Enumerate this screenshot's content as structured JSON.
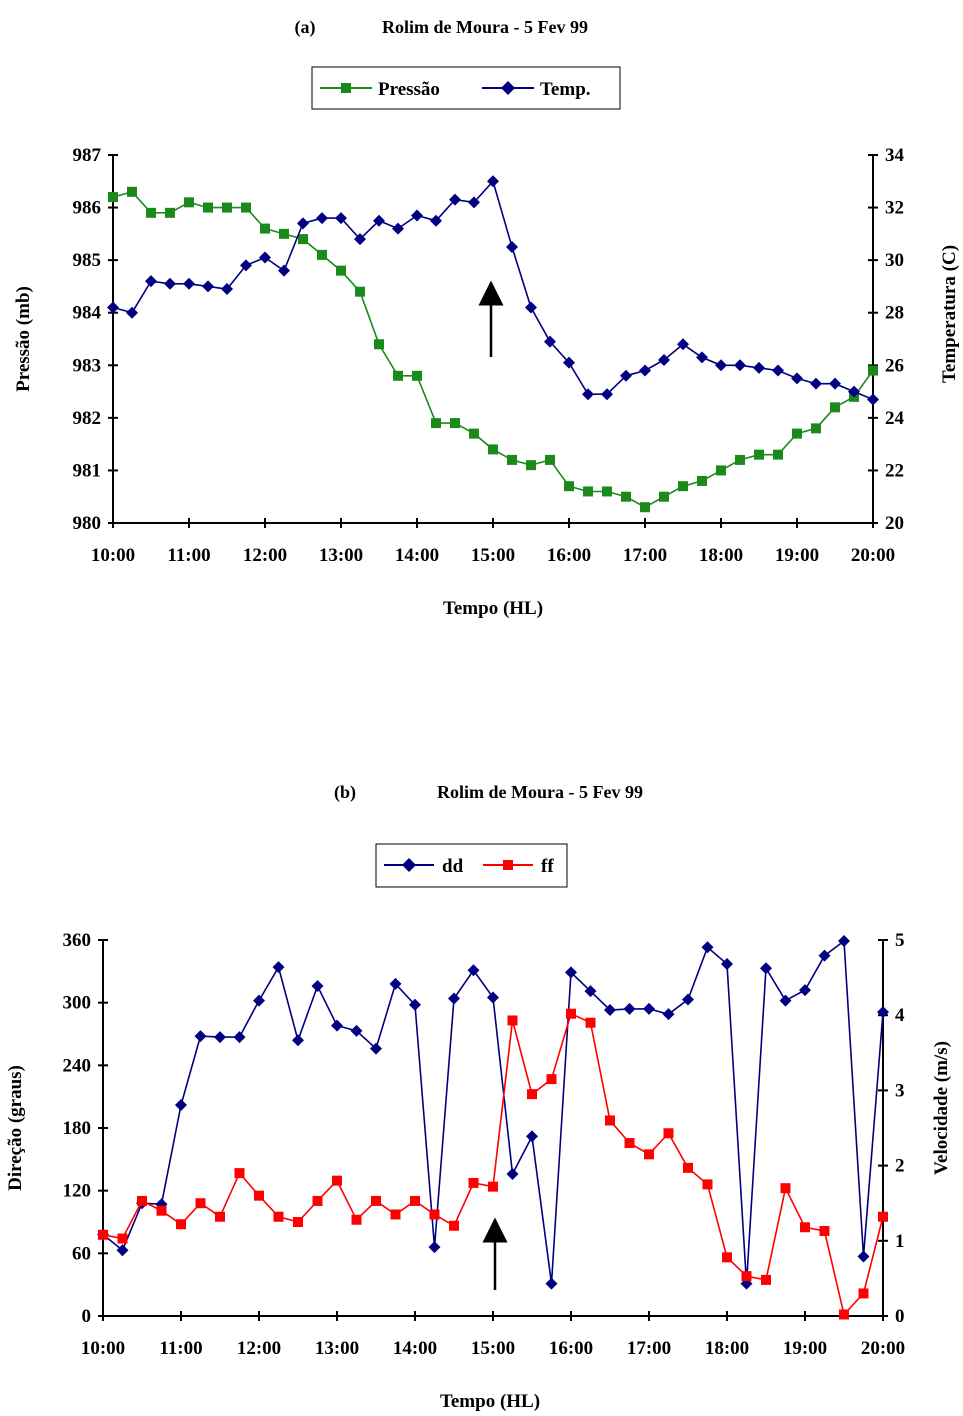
{
  "chart_data": [
    {
      "type": "line",
      "title": "(a)    Rolim de Moura - 5 Fev 99",
      "title_label": "(a)",
      "title_text": "Rolim de Moura - 5 Fev 99",
      "xlabel": "Tempo (HL)",
      "ylabel_left": "Pressão (mb)",
      "ylabel_right": "Temperatura (C)",
      "ylim_left": [
        980,
        987
      ],
      "ylim_right": [
        20,
        34
      ],
      "x_ticks": [
        "10:00",
        "11:00",
        "12:00",
        "13:00",
        "14:00",
        "15:00",
        "16:00",
        "17:00",
        "18:00",
        "19:00",
        "20:00"
      ],
      "y_ticks_left": [
        "980",
        "981",
        "982",
        "983",
        "984",
        "985",
        "986",
        "987"
      ],
      "y_ticks_right": [
        "20",
        "22",
        "24",
        "26",
        "28",
        "30",
        "32",
        "34"
      ],
      "legend_position": "top-center",
      "grid": false,
      "x_hours": [
        10,
        10.25,
        10.5,
        10.75,
        11,
        11.25,
        11.5,
        11.75,
        12,
        12.25,
        12.5,
        12.75,
        13,
        13.25,
        13.5,
        13.75,
        14,
        14.25,
        14.5,
        14.75,
        15,
        15.25,
        15.5,
        15.75,
        16,
        16.25,
        16.5,
        16.75,
        17,
        17.25,
        17.5,
        17.75,
        18,
        18.25,
        18.5,
        18.75,
        19,
        19.25,
        19.5,
        19.75,
        20
      ],
      "series": [
        {
          "name": "Pressão",
          "axis": "left",
          "color": "#1b8a1b",
          "marker": "square",
          "values": [
            986.2,
            986.3,
            985.9,
            985.9,
            986.1,
            986.0,
            986.0,
            986.0,
            985.6,
            985.5,
            985.4,
            985.1,
            984.8,
            984.4,
            983.4,
            982.8,
            982.8,
            981.9,
            981.9,
            981.7,
            981.4,
            981.2,
            981.1,
            981.2,
            980.7,
            980.6,
            980.6,
            980.5,
            980.3,
            980.5,
            980.7,
            980.8,
            981.0,
            981.2,
            981.3,
            981.3,
            981.7,
            981.8,
            982.2,
            982.4,
            982.9
          ]
        },
        {
          "name": "Temp.",
          "axis": "right",
          "color": "#000080",
          "marker": "diamond",
          "values": [
            28.2,
            28.0,
            29.2,
            29.1,
            29.1,
            29.0,
            28.9,
            29.8,
            30.1,
            29.6,
            31.4,
            31.6,
            31.6,
            30.8,
            31.5,
            31.2,
            31.7,
            31.5,
            32.3,
            32.2,
            33.0,
            30.5,
            28.2,
            26.9,
            26.1,
            24.9,
            24.9,
            25.6,
            25.8,
            26.2,
            26.8,
            26.3,
            26.0,
            26.0,
            25.9,
            25.8,
            25.5,
            25.3,
            25.3,
            25.0,
            24.7
          ]
        }
      ]
    },
    {
      "type": "line",
      "title": "(b)    Rolim de Moura - 5 Fev 99",
      "title_label": "(b)",
      "title_text": "Rolim de Moura - 5 Fev 99",
      "xlabel": "Tempo (HL)",
      "ylabel_left": "Direção (graus)",
      "ylabel_right": "Velocidade  (m/s)",
      "ylim_left": [
        0,
        360
      ],
      "ylim_right": [
        0,
        5
      ],
      "x_ticks": [
        "10:00",
        "11:00",
        "12:00",
        "13:00",
        "14:00",
        "15:00",
        "16:00",
        "17:00",
        "18:00",
        "19:00",
        "20:00"
      ],
      "y_ticks_left": [
        "0",
        "60",
        "120",
        "180",
        "240",
        "300",
        "360"
      ],
      "y_ticks_right": [
        "0",
        "1",
        "2",
        "3",
        "4",
        "5"
      ],
      "legend_position": "top-center",
      "grid": false,
      "x_hours": [
        10,
        10.25,
        10.5,
        10.75,
        11,
        11.25,
        11.5,
        11.75,
        12,
        12.25,
        12.5,
        12.75,
        13,
        13.25,
        13.5,
        13.75,
        14,
        14.25,
        14.5,
        14.75,
        15,
        15.25,
        15.5,
        15.75,
        16,
        16.25,
        16.5,
        16.75,
        17,
        17.25,
        17.5,
        17.75,
        18,
        18.25,
        18.5,
        18.75,
        19,
        19.25,
        19.5,
        19.75,
        20
      ],
      "series": [
        {
          "name": "dd",
          "axis": "left",
          "color": "#000080",
          "marker": "diamond",
          "values": [
            78,
            63,
            108,
            107,
            202,
            268,
            267,
            267,
            302,
            334,
            264,
            316,
            278,
            273,
            256,
            318,
            298,
            66,
            304,
            331,
            305,
            136,
            172,
            31,
            329,
            311,
            293,
            294,
            294,
            289,
            303,
            353,
            337,
            31,
            333,
            302,
            312,
            345,
            359,
            57,
            291
          ]
        },
        {
          "name": "ff",
          "axis": "right",
          "color": "#ff0000",
          "marker": "square",
          "values": [
            1.08,
            1.03,
            1.53,
            1.4,
            1.22,
            1.5,
            1.32,
            1.9,
            1.6,
            1.32,
            1.25,
            1.53,
            1.8,
            1.28,
            1.53,
            1.35,
            1.53,
            1.35,
            1.2,
            1.77,
            1.72,
            3.93,
            2.95,
            3.15,
            4.02,
            3.9,
            2.6,
            2.3,
            2.15,
            2.43,
            1.97,
            1.75,
            0.78,
            0.53,
            0.48,
            1.7,
            1.18,
            1.13,
            0.02,
            0.3,
            1.32
          ]
        }
      ]
    }
  ]
}
